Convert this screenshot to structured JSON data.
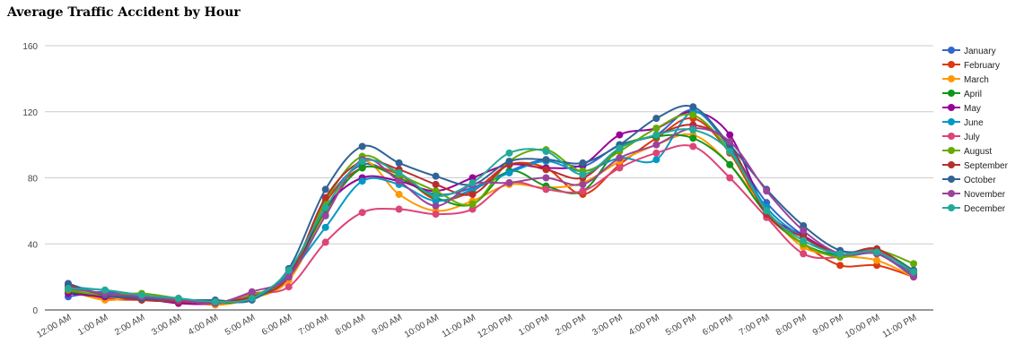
{
  "chart_data": {
    "type": "line",
    "title": "Average Traffic Accident by Hour",
    "xlabel": "",
    "ylabel": "",
    "ylim": [
      0,
      160
    ],
    "yticks": [
      "0",
      "40",
      "80",
      "120",
      "160"
    ],
    "grid": true,
    "legend_position": "right",
    "categories": [
      "12:00 AM",
      "1:00 AM",
      "2:00 AM",
      "3:00 AM",
      "4:00 AM",
      "5:00 AM",
      "6:00 AM",
      "7:00 AM",
      "8:00 AM",
      "9:00 AM",
      "10:00 AM",
      "11:00 AM",
      "12:00 PM",
      "1:00 PM",
      "2:00 PM",
      "3:00 PM",
      "4:00 PM",
      "5:00 PM",
      "6:00 PM",
      "7:00 PM",
      "8:00 PM",
      "9:00 PM",
      "10:00 PM",
      "11:00 PM"
    ],
    "series": [
      {
        "name": "January",
        "color": "#3366cc",
        "values": [
          8,
          11,
          7,
          5,
          5,
          7,
          22,
          65,
          88,
          80,
          70,
          74,
          84,
          91,
          87,
          100,
          106,
          121,
          98,
          65,
          45,
          33,
          34,
          21
        ]
      },
      {
        "name": "February",
        "color": "#dc3912",
        "values": [
          13,
          7,
          6,
          5,
          4,
          8,
          20,
          65,
          86,
          82,
          67,
          72,
          88,
          86,
          70,
          88,
          104,
          116,
          95,
          58,
          40,
          27,
          27,
          20
        ]
      },
      {
        "name": "March",
        "color": "#ff9900",
        "values": [
          12,
          6,
          8,
          6,
          3,
          7,
          18,
          58,
          90,
          70,
          60,
          66,
          76,
          74,
          77,
          90,
          100,
          106,
          88,
          60,
          38,
          33,
          30,
          20
        ]
      },
      {
        "name": "April",
        "color": "#109618",
        "values": [
          11,
          9,
          8,
          6,
          4,
          7,
          20,
          60,
          86,
          80,
          68,
          64,
          84,
          75,
          72,
          98,
          105,
          104,
          88,
          58,
          40,
          33,
          36,
          24
        ]
      },
      {
        "name": "May",
        "color": "#990099",
        "values": [
          10,
          8,
          7,
          4,
          4,
          9,
          20,
          62,
          80,
          78,
          72,
          80,
          88,
          86,
          88,
          106,
          110,
          120,
          106,
          60,
          45,
          34,
          36,
          22
        ]
      },
      {
        "name": "June",
        "color": "#0099c6",
        "values": [
          14,
          12,
          9,
          7,
          5,
          8,
          22,
          50,
          78,
          76,
          66,
          73,
          83,
          90,
          84,
          92,
          91,
          120,
          98,
          62,
          44,
          33,
          37,
          21
        ]
      },
      {
        "name": "July",
        "color": "#dd4477",
        "values": [
          14,
          10,
          9,
          6,
          4,
          10,
          14,
          41,
          59,
          61,
          58,
          61,
          77,
          73,
          72,
          86,
          95,
          99,
          80,
          56,
          34,
          32,
          36,
          22
        ]
      },
      {
        "name": "August",
        "color": "#66aa00",
        "values": [
          12,
          9,
          10,
          7,
          4,
          9,
          20,
          66,
          93,
          82,
          72,
          64,
          90,
          97,
          84,
          96,
          110,
          118,
          96,
          60,
          40,
          32,
          36,
          28
        ]
      },
      {
        "name": "September",
        "color": "#b82e2e",
        "values": [
          15,
          9,
          6,
          5,
          5,
          8,
          20,
          68,
          90,
          85,
          76,
          70,
          88,
          85,
          80,
          98,
          106,
          112,
          100,
          58,
          44,
          34,
          37,
          22
        ]
      },
      {
        "name": "October",
        "color": "#316395",
        "values": [
          16,
          9,
          7,
          6,
          6,
          6,
          25,
          73,
          99,
          89,
          81,
          76,
          90,
          91,
          89,
          100,
          116,
          123,
          100,
          73,
          51,
          36,
          35,
          24
        ]
      },
      {
        "name": "November",
        "color": "#994499",
        "values": [
          13,
          10,
          8,
          6,
          4,
          11,
          20,
          57,
          91,
          78,
          63,
          76,
          77,
          80,
          76,
          92,
          100,
          110,
          102,
          72,
          48,
          34,
          34,
          20
        ]
      },
      {
        "name": "December",
        "color": "#22aa99",
        "values": [
          13,
          12,
          9,
          7,
          5,
          7,
          24,
          62,
          90,
          83,
          69,
          77,
          95,
          96,
          82,
          98,
          106,
          109,
          96,
          60,
          42,
          34,
          35,
          23
        ]
      }
    ]
  }
}
